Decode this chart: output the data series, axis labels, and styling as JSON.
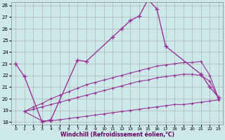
{
  "xlabel": "Windchill (Refroidissement éolien,°C)",
  "bg_color": "#cce8e8",
  "grid_color": "#aaaaaa",
  "line_color": "#993399",
  "xlim": [
    -0.5,
    23.5
  ],
  "ylim": [
    17.8,
    28.3
  ],
  "yticks": [
    18,
    19,
    20,
    21,
    22,
    23,
    24,
    25,
    26,
    27,
    28
  ],
  "xticks": [
    0,
    1,
    2,
    3,
    4,
    5,
    6,
    7,
    8,
    9,
    10,
    11,
    12,
    13,
    14,
    15,
    16,
    17,
    18,
    19,
    20,
    21,
    22,
    23
  ],
  "series": [
    {
      "x": [
        0,
        1,
        3,
        4,
        7,
        8,
        11,
        12,
        13,
        14,
        15,
        16,
        17,
        21,
        22,
        23
      ],
      "y": [
        23.0,
        21.9,
        18.0,
        18.2,
        23.3,
        23.2,
        25.3,
        26.0,
        26.7,
        27.1,
        28.5,
        27.7,
        24.5,
        22.1,
        21.0,
        20.1
      ]
    },
    {
      "x": [
        1,
        2,
        3,
        4,
        5,
        6,
        7,
        8,
        9,
        10,
        11,
        12,
        13,
        14,
        15,
        16,
        17,
        18,
        19,
        20,
        21,
        22,
        23
      ],
      "y": [
        18.9,
        19.3,
        19.6,
        20.0,
        20.3,
        20.6,
        20.9,
        21.2,
        21.4,
        21.6,
        21.8,
        22.0,
        22.2,
        22.4,
        22.6,
        22.8,
        22.9,
        23.0,
        23.1,
        23.1,
        23.2,
        22.0,
        20.0
      ]
    },
    {
      "x": [
        1,
        2,
        3,
        4,
        5,
        6,
        7,
        8,
        9,
        10,
        11,
        12,
        13,
        14,
        15,
        16,
        17,
        18,
        19,
        20,
        21,
        22,
        23
      ],
      "y": [
        18.9,
        19.1,
        19.3,
        19.5,
        19.7,
        19.9,
        20.1,
        20.3,
        20.5,
        20.7,
        20.9,
        21.1,
        21.3,
        21.5,
        21.6,
        21.8,
        21.9,
        22.0,
        22.1,
        22.1,
        22.0,
        21.5,
        20.0
      ]
    },
    {
      "x": [
        1,
        3,
        4,
        5,
        6,
        7,
        8,
        9,
        10,
        11,
        12,
        13,
        14,
        15,
        16,
        17,
        18,
        19,
        20,
        21,
        22,
        23
      ],
      "y": [
        18.9,
        18.1,
        18.1,
        18.2,
        18.3,
        18.4,
        18.5,
        18.6,
        18.7,
        18.8,
        18.9,
        19.0,
        19.1,
        19.2,
        19.3,
        19.4,
        19.5,
        19.5,
        19.6,
        19.7,
        19.8,
        19.9
      ]
    }
  ]
}
